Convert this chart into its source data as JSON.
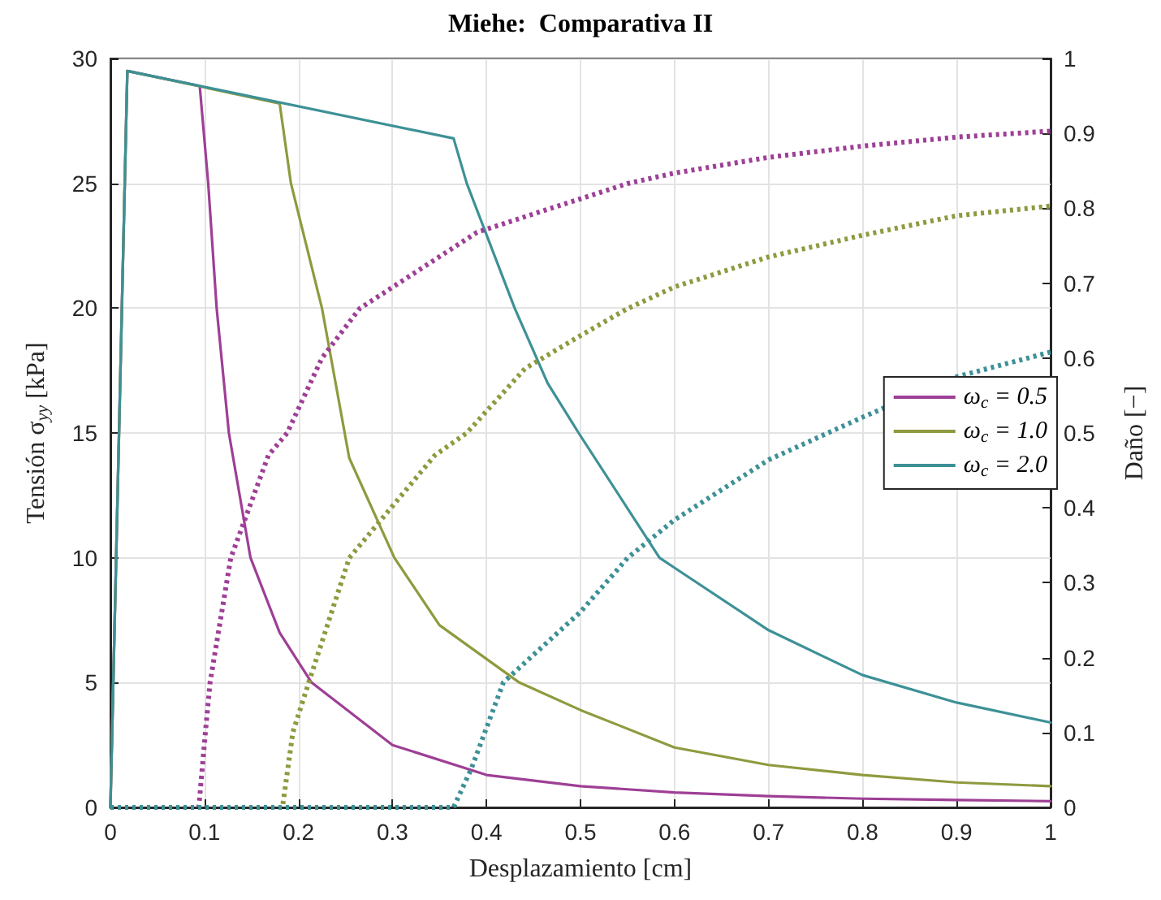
{
  "chart_data": {
    "type": "line",
    "title": "Miehe:  Comparativa II",
    "xlabel": "Desplazamiento [cm]",
    "ylabel": "Tensión σ$_{yy}$ [kPa]",
    "y2label": "Daño [−]",
    "xlim": [
      0,
      1
    ],
    "xticks": [
      0,
      0.1,
      0.2,
      0.3,
      0.4,
      0.5,
      0.6,
      0.7,
      0.8,
      0.9,
      1
    ],
    "ylim": [
      0,
      30
    ],
    "yticks": [
      0,
      5,
      10,
      15,
      20,
      25,
      30
    ],
    "y2lim": [
      0,
      1
    ],
    "y2ticks": [
      0,
      0.1,
      0.2,
      0.3,
      0.4,
      0.5,
      0.6,
      0.7,
      0.8,
      0.9,
      1
    ],
    "grid": true,
    "legend": "right",
    "line_style": "solid",
    "marker": "none",
    "series": [
      {
        "name": "ω$_{c}$ = 0.5",
        "color": "#9e3f96",
        "x": [
          0,
          0.018,
          0.095,
          0.104,
          0.113,
          0.126,
          0.149,
          0.18,
          0.214,
          0.3,
          0.4,
          0.5,
          0.6,
          0.7,
          0.8,
          0.9,
          1
        ],
        "values": [
          0,
          29.5,
          28.9,
          25,
          20,
          15,
          10,
          7,
          5,
          2.5,
          1.3,
          0.85,
          0.6,
          0.45,
          0.35,
          0.3,
          0.25
        ]
      },
      {
        "name": "ω$_{c}$ = 1.0",
        "color": "#8f9a3f",
        "x": [
          0,
          0.018,
          0.18,
          0.192,
          0.225,
          0.254,
          0.302,
          0.35,
          0.435,
          0.5,
          0.6,
          0.7,
          0.8,
          0.9,
          1
        ],
        "values": [
          0,
          29.5,
          28.2,
          25,
          20,
          14,
          10,
          7.3,
          5,
          3.9,
          2.4,
          1.7,
          1.3,
          1,
          0.85
        ]
      },
      {
        "name": "ω$_{c}$ = 2.0",
        "color": "#3d9196",
        "x": [
          0,
          0.018,
          0.365,
          0.379,
          0.43,
          0.465,
          0.498,
          0.584,
          0.6,
          0.7,
          0.8,
          0.9,
          1
        ],
        "values": [
          0,
          29.5,
          26.8,
          25,
          20,
          17,
          15,
          10,
          9.6,
          7.1,
          5.3,
          4.2,
          3.4
        ]
      },
      {
        "color": "#9e3f96",
        "axis": "y2",
        "line_style": "dotted",
        "x": [
          0,
          0.094,
          0.101,
          0.106,
          0.128,
          0.168,
          0.188,
          0.225,
          0.265,
          0.39,
          0.55,
          0.6,
          0.7,
          0.8,
          0.9,
          1
        ],
        "values": [
          0,
          0,
          0.1,
          0.167,
          0.333,
          0.47,
          0.5,
          0.6,
          0.666,
          0.768,
          0.833,
          0.847,
          0.868,
          0.883,
          0.895,
          0.903
        ]
      },
      {
        "color": "#8f9a3f",
        "axis": "y2",
        "line_style": "dotted",
        "x": [
          0,
          0.183,
          0.194,
          0.211,
          0.254,
          0.345,
          0.379,
          0.441,
          0.5,
          0.55,
          0.6,
          0.7,
          0.8,
          0.9,
          1
        ],
        "values": [
          0,
          0,
          0.1,
          0.167,
          0.333,
          0.47,
          0.5,
          0.586,
          0.63,
          0.666,
          0.695,
          0.735,
          0.764,
          0.79,
          0.803
        ]
      },
      {
        "color": "#3d9196",
        "axis": "y2",
        "line_style": "dotted",
        "x": [
          0,
          0.365,
          0.384,
          0.418,
          0.5,
          0.55,
          0.6,
          0.7,
          0.8,
          0.9,
          1
        ],
        "values": [
          0,
          0,
          0.052,
          0.167,
          0.261,
          0.333,
          0.384,
          0.464,
          0.521,
          0.575,
          0.608
        ]
      }
    ]
  }
}
